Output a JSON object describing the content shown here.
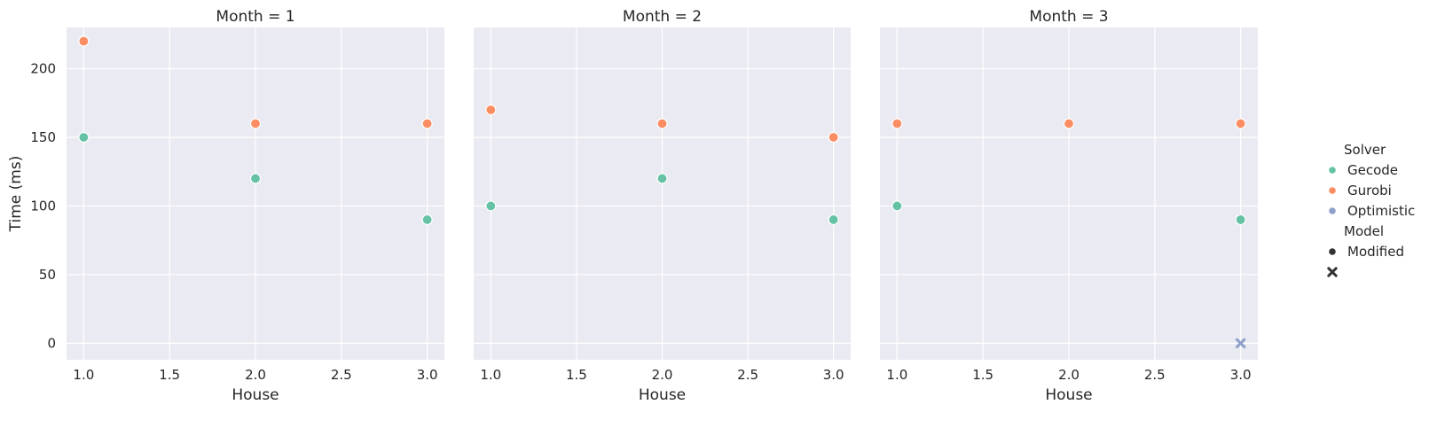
{
  "chart_data": {
    "type": "scatter",
    "facet_variable": "Month",
    "xlabel": "House",
    "ylabel": "Time (ms)",
    "xlim": [
      0.9,
      3.1
    ],
    "ylim": [
      -12,
      230
    ],
    "xticks": [
      1.0,
      1.5,
      2.0,
      2.5,
      3.0
    ],
    "xtick_labels": [
      "1.0",
      "1.5",
      "2.0",
      "2.5",
      "3.0"
    ],
    "yticks": [
      0,
      50,
      100,
      150,
      200
    ],
    "ytick_labels": [
      "0",
      "50",
      "100",
      "150",
      "200"
    ],
    "grid": true,
    "legend": {
      "placement": "right",
      "hue_title": "Solver",
      "hue_entries": [
        {
          "label": "Gecode",
          "color": "#66c2a5"
        },
        {
          "label": "Gurobi",
          "color": "#fc8d62"
        },
        {
          "label": "Optimistic",
          "color": "#8da0cb"
        }
      ],
      "style_title": "Model",
      "style_entries": [
        {
          "label": "Modified",
          "marker": "circle"
        },
        {
          "label": "",
          "marker": "x"
        }
      ]
    },
    "panels": [
      {
        "title": "Month = 1",
        "points": [
          {
            "x": 1.0,
            "y": 220,
            "solver": "Gurobi",
            "marker": "circle"
          },
          {
            "x": 1.0,
            "y": 150,
            "solver": "Gecode",
            "marker": "circle"
          },
          {
            "x": 2.0,
            "y": 160,
            "solver": "Gurobi",
            "marker": "circle"
          },
          {
            "x": 2.0,
            "y": 120,
            "solver": "Gecode",
            "marker": "circle"
          },
          {
            "x": 3.0,
            "y": 160,
            "solver": "Gurobi",
            "marker": "circle"
          },
          {
            "x": 3.0,
            "y": 90,
            "solver": "Gecode",
            "marker": "circle"
          }
        ]
      },
      {
        "title": "Month = 2",
        "points": [
          {
            "x": 1.0,
            "y": 170,
            "solver": "Gurobi",
            "marker": "circle"
          },
          {
            "x": 1.0,
            "y": 100,
            "solver": "Gecode",
            "marker": "circle"
          },
          {
            "x": 2.0,
            "y": 160,
            "solver": "Gurobi",
            "marker": "circle"
          },
          {
            "x": 2.0,
            "y": 120,
            "solver": "Gecode",
            "marker": "circle"
          },
          {
            "x": 3.0,
            "y": 150,
            "solver": "Gurobi",
            "marker": "circle"
          },
          {
            "x": 3.0,
            "y": 90,
            "solver": "Gecode",
            "marker": "circle"
          }
        ]
      },
      {
        "title": "Month = 3",
        "points": [
          {
            "x": 1.0,
            "y": 160,
            "solver": "Gurobi",
            "marker": "circle"
          },
          {
            "x": 1.0,
            "y": 100,
            "solver": "Gecode",
            "marker": "circle"
          },
          {
            "x": 2.0,
            "y": 160,
            "solver": "Gecode",
            "marker": "circle"
          },
          {
            "x": 2.0,
            "y": 160,
            "solver": "Gurobi",
            "marker": "circle"
          },
          {
            "x": 3.0,
            "y": 160,
            "solver": "Gurobi",
            "marker": "circle"
          },
          {
            "x": 3.0,
            "y": 90,
            "solver": "Gecode",
            "marker": "circle"
          },
          {
            "x": 3.0,
            "y": 0,
            "solver": "Optimistic",
            "marker": "x"
          }
        ]
      }
    ]
  }
}
